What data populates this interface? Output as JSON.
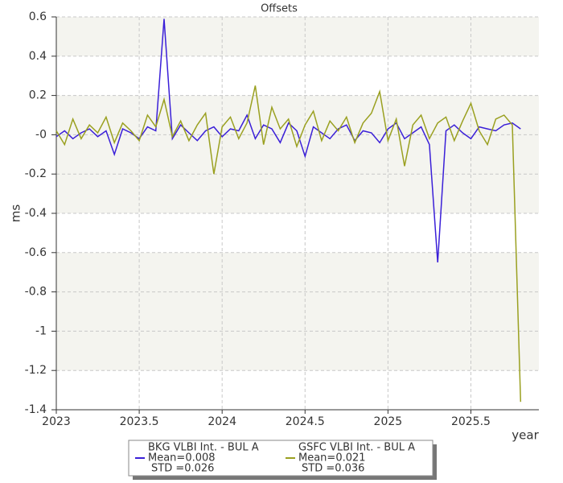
{
  "chart_data": {
    "type": "line",
    "title": "Offsets",
    "x_label": "year",
    "y_label": "ms",
    "xlim": [
      2023,
      2025.91
    ],
    "xticks": [
      2023,
      2023.5,
      2024,
      2024.5,
      2025,
      2025.5
    ],
    "ylim": [
      -1.4,
      0.6
    ],
    "yticks": [
      0.6,
      0.4,
      0.2,
      {
        "value": 0,
        "label": "-0"
      },
      -0.2,
      -0.4,
      -0.6,
      -0.8,
      -1,
      -1.2,
      -1.4
    ],
    "grid": true,
    "x": [
      2023.0,
      2023.05,
      2023.1,
      2023.15,
      2023.2,
      2023.25,
      2023.3,
      2023.35,
      2023.4,
      2023.45,
      2023.5,
      2023.55,
      2023.6,
      2023.65,
      2023.7,
      2023.75,
      2023.8,
      2023.85,
      2023.9,
      2023.95,
      2024.0,
      2024.05,
      2024.1,
      2024.15,
      2024.2,
      2024.25,
      2024.3,
      2024.35,
      2024.4,
      2024.45,
      2024.5,
      2024.55,
      2024.6,
      2024.65,
      2024.7,
      2024.75,
      2024.8,
      2024.85,
      2024.9,
      2024.95,
      2025.0,
      2025.05,
      2025.1,
      2025.15,
      2025.2,
      2025.25,
      2025.3,
      2025.35,
      2025.4,
      2025.45,
      2025.5,
      2025.55,
      2025.6,
      2025.65,
      2025.7,
      2025.75,
      2025.8
    ],
    "series": [
      {
        "name": "BKG VLBI Int. - BUL A",
        "stats": [
          "Mean=0.008",
          "STD =0.026"
        ],
        "color": "#3a1fd8",
        "values": [
          -0.01,
          0.02,
          -0.02,
          0.01,
          0.03,
          -0.01,
          0.02,
          -0.1,
          0.03,
          0.01,
          -0.02,
          0.04,
          0.02,
          0.59,
          -0.02,
          0.05,
          0.01,
          -0.03,
          0.02,
          0.04,
          -0.01,
          0.03,
          0.02,
          0.1,
          -0.02,
          0.05,
          0.03,
          -0.04,
          0.06,
          0.02,
          -0.11,
          0.04,
          0.01,
          -0.02,
          0.03,
          0.05,
          -0.03,
          0.02,
          0.01,
          -0.04,
          0.03,
          0.06,
          -0.02,
          0.01,
          0.04,
          -0.05,
          -0.65,
          0.02,
          0.05,
          0.01,
          -0.02,
          0.04,
          0.03,
          0.02,
          0.05,
          0.06,
          0.03
        ]
      },
      {
        "name": "GSFC VLBI Int. - BUL A",
        "stats": [
          "Mean=0.021",
          "STD =0.036"
        ],
        "color": "#9aa020",
        "values": [
          0.02,
          -0.05,
          0.08,
          -0.02,
          0.05,
          0.01,
          0.09,
          -0.04,
          0.06,
          0.02,
          -0.03,
          0.1,
          0.04,
          0.18,
          -0.01,
          0.07,
          -0.03,
          0.05,
          0.11,
          -0.2,
          0.04,
          0.09,
          -0.02,
          0.06,
          0.25,
          -0.05,
          0.14,
          0.03,
          0.08,
          -0.06,
          0.05,
          0.12,
          -0.03,
          0.07,
          0.02,
          0.09,
          -0.04,
          0.06,
          0.11,
          0.22,
          -0.03,
          0.08,
          -0.16,
          0.05,
          0.1,
          -0.02,
          0.06,
          0.09,
          -0.03,
          0.07,
          0.16,
          0.02,
          -0.05,
          0.08,
          0.1,
          0.05,
          -1.36
        ]
      }
    ]
  }
}
